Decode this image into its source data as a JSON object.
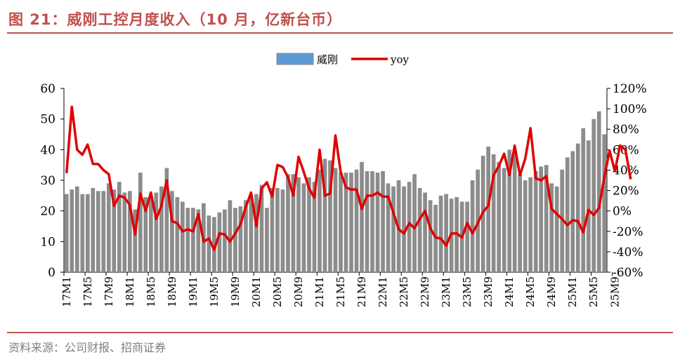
{
  "header": {
    "title": "图 21：威刚工控月度收入（10 月，亿新台币）"
  },
  "footer": {
    "source": "资料来源：公司财报、招商证券"
  },
  "colors": {
    "accent": "#c0504d",
    "bar": "#8c8c8c",
    "legend_bar": "#5b9bd5",
    "line": "#e00000"
  },
  "chart_data": {
    "type": "bar",
    "legend_position": "top-center",
    "grid": false,
    "x_tick_labels": [
      "17M1",
      "17M5",
      "17M9",
      "18M1",
      "18M5",
      "18M9",
      "19M1",
      "19M5",
      "19M9",
      "20M1",
      "20M5",
      "20M9",
      "21M1",
      "21M5",
      "21M9",
      "22M1",
      "22M5",
      "22M9",
      "23M1",
      "23M5",
      "23M9",
      "24M1",
      "24M5",
      "24M9",
      "25M1",
      "25M5",
      "25M9"
    ],
    "left_axis": {
      "ylim": [
        0,
        60
      ],
      "ticks": [
        "0",
        "10",
        "20",
        "30",
        "40",
        "50",
        "60"
      ]
    },
    "right_axis": {
      "ylim": [
        -60,
        120
      ],
      "ticks": [
        "-60%",
        "-40%",
        "-20%",
        "0%",
        "20%",
        "40%",
        "60%",
        "80%",
        "100%",
        "120%"
      ]
    },
    "series": [
      {
        "name": "威刚",
        "type": "bar",
        "axis": "left",
        "values": [
          25.5,
          27,
          28,
          25.5,
          25.5,
          27.5,
          26.5,
          26.5,
          29,
          27,
          29.5,
          26,
          26.5,
          20.5,
          32.5,
          24.5,
          24.5,
          26,
          28,
          34,
          26.5,
          24.5,
          23,
          21,
          21,
          20.5,
          22.5,
          18.5,
          18,
          19.5,
          20.5,
          23.5,
          21,
          21.5,
          23.5,
          25,
          25.5,
          28.5,
          21,
          27.5,
          27.5,
          27,
          32,
          32,
          31,
          29,
          31,
          29.5,
          33.5,
          37,
          36.5,
          34,
          32.5,
          32.5,
          32.5,
          33.5,
          36,
          33,
          33,
          32.5,
          33,
          29,
          28,
          30,
          28,
          29.5,
          32,
          27.5,
          26,
          23.5,
          22,
          25,
          25.5,
          24,
          24.5,
          23,
          23,
          30,
          33.5,
          38,
          41,
          38.5,
          36,
          34,
          40,
          39,
          32,
          30,
          31,
          33,
          34.5,
          35,
          29,
          28,
          33.5,
          37.5,
          39.5,
          42,
          47,
          43,
          50,
          52.5,
          45
        ]
      },
      {
        "name": "yoy",
        "type": "line",
        "axis": "right",
        "values": [
          37,
          102,
          60,
          55,
          65,
          46,
          46,
          40,
          36,
          5,
          15,
          13,
          6,
          -23,
          17,
          0,
          18,
          -8,
          5,
          30,
          -10,
          -12,
          -20,
          -18,
          -20,
          -3,
          -30,
          -27,
          -38,
          -22,
          -23,
          -30,
          -22,
          -13,
          4,
          18,
          -15,
          22,
          28,
          14,
          45,
          43,
          33,
          15,
          53,
          38,
          22,
          13,
          60,
          15,
          17,
          74,
          38,
          23,
          21,
          21,
          2,
          15,
          15,
          18,
          14,
          14,
          -2,
          -18,
          -22,
          -12,
          -17,
          -8,
          0,
          -17,
          -26,
          -27,
          -34,
          -22,
          -22,
          -26,
          -12,
          -22,
          -12,
          -1,
          5,
          35,
          44,
          56,
          35,
          64,
          35,
          51,
          81,
          32,
          30,
          34,
          2,
          -3,
          -8,
          -14,
          -9,
          -10,
          -21,
          1,
          -4,
          3,
          33,
          59,
          39,
          64,
          60,
          31
        ]
      }
    ]
  }
}
